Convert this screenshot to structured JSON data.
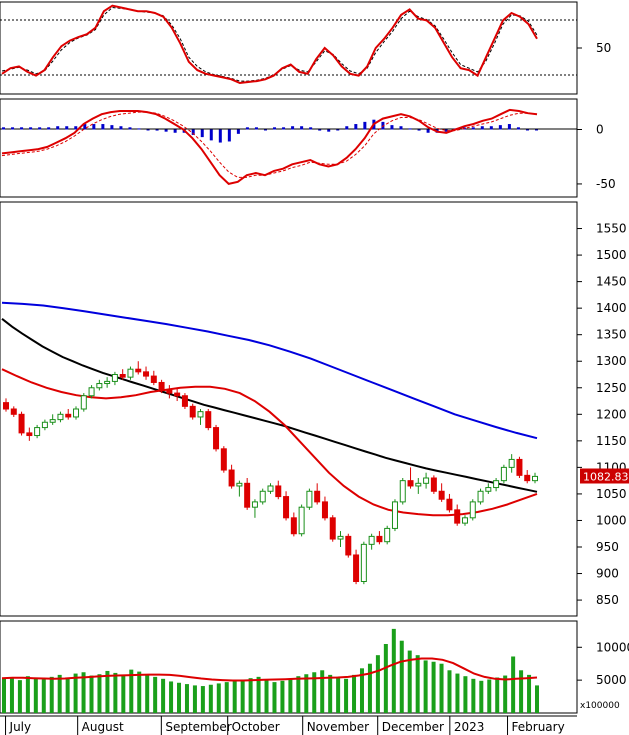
{
  "colors": {
    "up": "#1a8f1a",
    "down": "#dd0000",
    "ma_black": "#000000",
    "ma_red": "#dd0000",
    "ma_blue": "#0000dd",
    "osc_main": "#dd0000",
    "osc_signal": "#000000",
    "hist_pos": "#0000cc",
    "hist_neg": "#0000cc",
    "volume": "#1a9f1a",
    "volume_ma": "#dd0000",
    "grid": "#000000",
    "tag_bg": "#cc0000"
  },
  "chart_data": [
    {
      "id": "stochastic",
      "type": "line",
      "ylim": [
        0,
        100
      ],
      "yticks": [
        "50"
      ],
      "tick_values": [
        50
      ],
      "levels": [
        80,
        20
      ],
      "main": [
        22,
        28,
        30,
        24,
        20,
        26,
        40,
        52,
        58,
        62,
        65,
        72,
        90,
        96,
        94,
        92,
        90,
        90,
        88,
        84,
        72,
        55,
        35,
        26,
        22,
        20,
        18,
        16,
        12,
        13,
        14,
        16,
        20,
        28,
        32,
        24,
        22,
        38,
        50,
        42,
        30,
        22,
        20,
        30,
        50,
        60,
        72,
        86,
        92,
        82,
        80,
        72,
        56,
        40,
        28,
        26,
        20,
        40,
        60,
        80,
        88,
        84,
        76,
        60
      ],
      "signal": [
        25,
        27,
        29,
        26,
        22,
        25,
        36,
        48,
        56,
        61,
        64,
        70,
        86,
        94,
        93,
        92,
        90,
        89,
        88,
        85,
        75,
        60,
        40,
        30,
        24,
        21,
        19,
        17,
        14,
        14,
        15,
        17,
        21,
        27,
        31,
        26,
        24,
        35,
        47,
        43,
        33,
        25,
        22,
        28,
        45,
        57,
        68,
        82,
        90,
        84,
        81,
        74,
        60,
        45,
        32,
        28,
        24,
        36,
        55,
        76,
        86,
        85,
        79,
        64
      ]
    },
    {
      "id": "macd",
      "type": "line",
      "ylim": [
        -65,
        30
      ],
      "yticks": [
        "0",
        "-50"
      ],
      "tick_values": [
        0,
        -50
      ],
      "zero_line": 0,
      "macd": [
        -22,
        -21,
        -20,
        -19,
        -18,
        -16,
        -12,
        -8,
        -3,
        5,
        10,
        14,
        16,
        17,
        17,
        17,
        16,
        14,
        10,
        5,
        0,
        -8,
        -18,
        -30,
        -42,
        -50,
        -48,
        -42,
        -40,
        -42,
        -38,
        -36,
        -32,
        -30,
        -28,
        -32,
        -34,
        -32,
        -26,
        -18,
        -8,
        5,
        10,
        12,
        14,
        12,
        8,
        2,
        -2,
        -3,
        0,
        3,
        5,
        8,
        10,
        14,
        18,
        17,
        15,
        14
      ],
      "signal": [
        -24,
        -23,
        -22,
        -21,
        -20,
        -18,
        -15,
        -11,
        -6,
        0,
        5,
        9,
        12,
        14,
        15,
        16,
        16,
        15,
        12,
        8,
        3,
        -3,
        -11,
        -20,
        -30,
        -39,
        -44,
        -44,
        -42,
        -42,
        -40,
        -38,
        -35,
        -33,
        -30,
        -31,
        -32,
        -32,
        -29,
        -23,
        -15,
        -4,
        3,
        8,
        11,
        11,
        9,
        5,
        1,
        -1,
        -1,
        1,
        3,
        5,
        7,
        10,
        13,
        15,
        15,
        14
      ],
      "histogram": [
        2,
        2,
        2,
        2,
        2,
        2,
        3,
        3,
        3,
        5,
        5,
        5,
        4,
        3,
        2,
        1,
        0,
        -1,
        -2,
        -3,
        -3,
        -5,
        -7,
        -10,
        -12,
        -11,
        -4,
        2,
        2,
        0,
        2,
        2,
        3,
        3,
        2,
        -1,
        -2,
        0,
        3,
        5,
        7,
        9,
        7,
        4,
        3,
        1,
        -1,
        -3,
        -3,
        -2,
        1,
        2,
        2,
        3,
        3,
        4,
        5,
        2,
        0,
        0
      ]
    },
    {
      "id": "price",
      "type": "candlestick",
      "ylim": [
        800,
        1600
      ],
      "yticks": [
        "850",
        "900",
        "950",
        "1000",
        "1050",
        "1100",
        "1150",
        "1200",
        "1250",
        "1300",
        "1350",
        "1400",
        "1450",
        "1500",
        "1550"
      ],
      "tick_values": [
        850,
        900,
        950,
        1000,
        1050,
        1100,
        1150,
        1200,
        1250,
        1300,
        1350,
        1400,
        1450,
        1500,
        1550
      ],
      "last_price": "1082.830",
      "last_value": 1082.83,
      "ohlc": [
        [
          1222,
          1230,
          1205,
          1210
        ],
        [
          1210,
          1215,
          1195,
          1200
        ],
        [
          1200,
          1205,
          1160,
          1165
        ],
        [
          1165,
          1175,
          1150,
          1160
        ],
        [
          1160,
          1180,
          1155,
          1175
        ],
        [
          1175,
          1190,
          1170,
          1185
        ],
        [
          1185,
          1200,
          1180,
          1190
        ],
        [
          1190,
          1205,
          1185,
          1200
        ],
        [
          1200,
          1210,
          1190,
          1195
        ],
        [
          1195,
          1215,
          1190,
          1210
        ],
        [
          1210,
          1240,
          1205,
          1235
        ],
        [
          1235,
          1255,
          1230,
          1250
        ],
        [
          1250,
          1265,
          1245,
          1258
        ],
        [
          1258,
          1270,
          1250,
          1262
        ],
        [
          1262,
          1280,
          1255,
          1275
        ],
        [
          1275,
          1285,
          1265,
          1270
        ],
        [
          1270,
          1290,
          1265,
          1285
        ],
        [
          1285,
          1300,
          1275,
          1280
        ],
        [
          1280,
          1290,
          1265,
          1272
        ],
        [
          1272,
          1282,
          1255,
          1260
        ],
        [
          1260,
          1265,
          1240,
          1245
        ],
        [
          1245,
          1255,
          1230,
          1240
        ],
        [
          1240,
          1250,
          1225,
          1235
        ],
        [
          1235,
          1240,
          1210,
          1215
        ],
        [
          1215,
          1220,
          1190,
          1195
        ],
        [
          1195,
          1210,
          1180,
          1205
        ],
        [
          1205,
          1210,
          1170,
          1175
        ],
        [
          1175,
          1180,
          1130,
          1135
        ],
        [
          1135,
          1140,
          1090,
          1095
        ],
        [
          1095,
          1105,
          1060,
          1065
        ],
        [
          1065,
          1075,
          1045,
          1070
        ],
        [
          1070,
          1080,
          1020,
          1025
        ],
        [
          1025,
          1040,
          1005,
          1035
        ],
        [
          1035,
          1060,
          1030,
          1055
        ],
        [
          1055,
          1070,
          1050,
          1065
        ],
        [
          1065,
          1075,
          1040,
          1045
        ],
        [
          1045,
          1055,
          1000,
          1005
        ],
        [
          1005,
          1015,
          970,
          975
        ],
        [
          975,
          1030,
          970,
          1025
        ],
        [
          1025,
          1060,
          1020,
          1055
        ],
        [
          1055,
          1070,
          1030,
          1035
        ],
        [
          1035,
          1045,
          1000,
          1005
        ],
        [
          1005,
          1010,
          960,
          965
        ],
        [
          965,
          980,
          950,
          970
        ],
        [
          970,
          975,
          930,
          935
        ],
        [
          935,
          945,
          880,
          885
        ],
        [
          885,
          960,
          880,
          955
        ],
        [
          955,
          975,
          945,
          970
        ],
        [
          970,
          980,
          955,
          960
        ],
        [
          960,
          990,
          955,
          985
        ],
        [
          985,
          1040,
          980,
          1035
        ],
        [
          1035,
          1080,
          1030,
          1075
        ],
        [
          1075,
          1100,
          1060,
          1065
        ],
        [
          1065,
          1080,
          1050,
          1070
        ],
        [
          1070,
          1090,
          1060,
          1080
        ],
        [
          1080,
          1085,
          1050,
          1055
        ],
        [
          1055,
          1070,
          1035,
          1040
        ],
        [
          1040,
          1050,
          1015,
          1020
        ],
        [
          1020,
          1030,
          990,
          995
        ],
        [
          995,
          1010,
          990,
          1005
        ],
        [
          1005,
          1040,
          1000,
          1035
        ],
        [
          1035,
          1060,
          1030,
          1055
        ],
        [
          1055,
          1070,
          1050,
          1062
        ],
        [
          1062,
          1080,
          1055,
          1075
        ],
        [
          1075,
          1105,
          1070,
          1100
        ],
        [
          1100,
          1125,
          1090,
          1115
        ],
        [
          1115,
          1120,
          1080,
          1085
        ],
        [
          1085,
          1095,
          1070,
          1075
        ],
        [
          1075,
          1090,
          1070,
          1083
        ]
      ],
      "ma_black": [
        1380,
        1365,
        1352,
        1340,
        1328,
        1318,
        1308,
        1300,
        1292,
        1285,
        1278,
        1272,
        1266,
        1260,
        1254,
        1248,
        1242,
        1236,
        1230,
        1224,
        1218,
        1213,
        1208,
        1203,
        1198,
        1193,
        1188,
        1183,
        1178,
        1172,
        1166,
        1160,
        1154,
        1148,
        1142,
        1136,
        1130,
        1124,
        1118,
        1113,
        1108,
        1103,
        1098,
        1094,
        1090,
        1086,
        1082,
        1078,
        1074,
        1070,
        1066,
        1062,
        1058,
        1054
      ],
      "ma_red": [
        1285,
        1272,
        1260,
        1250,
        1242,
        1236,
        1232,
        1230,
        1232,
        1236,
        1242,
        1246,
        1250,
        1252,
        1252,
        1248,
        1240,
        1225,
        1205,
        1180,
        1150,
        1120,
        1090,
        1065,
        1045,
        1030,
        1020,
        1015,
        1012,
        1010,
        1010,
        1012,
        1016,
        1022,
        1030,
        1040,
        1050
      ],
      "ma_blue": [
        1410,
        1408,
        1405,
        1400,
        1394,
        1388,
        1382,
        1376,
        1370,
        1363,
        1356,
        1348,
        1340,
        1330,
        1318,
        1305,
        1290,
        1275,
        1260,
        1245,
        1230,
        1215,
        1200,
        1188,
        1176,
        1165,
        1155
      ]
    },
    {
      "id": "volume",
      "type": "bar",
      "ylim": [
        0,
        14000
      ],
      "yticks": [
        "5000",
        "10000"
      ],
      "tick_values": [
        5000,
        10000
      ],
      "unit_label": "x100000",
      "values": [
        5200,
        5400,
        5000,
        5600,
        5300,
        5100,
        5500,
        5800,
        5400,
        6000,
        6200,
        5700,
        5900,
        6400,
        6100,
        5800,
        6600,
        6300,
        5900,
        5500,
        5200,
        4800,
        4600,
        4400,
        4200,
        4100,
        4300,
        4500,
        4700,
        4900,
        5100,
        5300,
        5500,
        5000,
        4700,
        4900,
        5200,
        5600,
        5900,
        6200,
        6500,
        5800,
        5500,
        5200,
        5800,
        6800,
        7500,
        8800,
        10500,
        12800,
        11000,
        9500,
        8800,
        8000,
        7800,
        7500,
        6500,
        6000,
        5600,
        5200,
        4900,
        5100,
        5400,
        5700,
        8600,
        6500,
        5800,
        4200
      ],
      "ma": [
        5300,
        5350,
        5350,
        5300,
        5250,
        5200,
        5250,
        5350,
        5450,
        5550,
        5650,
        5700,
        5750,
        5800,
        5850,
        5850,
        5800,
        5650,
        5450,
        5250,
        5100,
        5000,
        4950,
        4950,
        5000,
        5050,
        5100,
        5150,
        5200,
        5250,
        5300,
        5350,
        5400,
        5500,
        5700,
        6000,
        6500,
        7200,
        7800,
        8100,
        8300,
        8300,
        8100,
        7600,
        6800,
        6000,
        5500,
        5200,
        5100,
        5200,
        5300,
        5400
      ]
    }
  ],
  "x_axis": {
    "months": [
      "July",
      "August",
      "September",
      "October",
      "November",
      "December",
      "2023",
      "February"
    ],
    "month_positions": [
      0.02,
      0.145,
      0.29,
      0.405,
      0.535,
      0.665,
      0.79,
      0.89
    ]
  }
}
